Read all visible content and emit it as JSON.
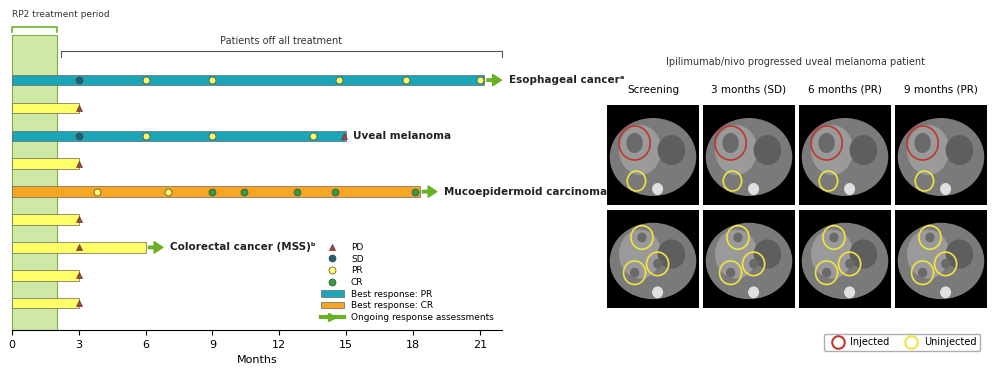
{
  "chart_data": {
    "type": "swimmer",
    "xlabel": "Months",
    "xlim": [
      0,
      22
    ],
    "xticks": [
      0,
      3,
      6,
      9,
      12,
      15,
      18,
      21
    ],
    "tick_labels": "x",
    "legend": "lower right",
    "treatment_period": {
      "label": "RP2 treatment period",
      "start": 0,
      "end": 2,
      "color": "#cfe8a6"
    },
    "off_treatment": {
      "label": "Patients off all treatment"
    },
    "response_types": [
      {
        "name": "PD",
        "color": "#c0392b",
        "marker": "triangle"
      },
      {
        "name": "SD",
        "color": "#1f5f7a",
        "marker": "circle"
      },
      {
        "name": "PR",
        "color": "#ffff66",
        "marker": "circle"
      },
      {
        "name": "CR",
        "color": "#2e9e3e",
        "marker": "circle"
      }
    ],
    "bar_types": [
      {
        "name": "Best response: PR",
        "color": "#1aa6b7"
      },
      {
        "name": "Best response: CR",
        "color": "#f5a623"
      }
    ],
    "ongoing": {
      "label": "Ongoing response assessments",
      "color": "#6ab023"
    },
    "patients": [
      {
        "label": "Esophageal cancerᵃ",
        "end": 21.2,
        "color": "#1aa6b7",
        "ongoing": true,
        "assessments": [
          {
            "month": 3,
            "response": "SD"
          },
          {
            "month": 6,
            "response": "PR"
          },
          {
            "month": 9,
            "response": "PR"
          },
          {
            "month": 14.7,
            "response": "PR"
          },
          {
            "month": 17.7,
            "response": "PR"
          },
          {
            "month": 21,
            "response": "PR"
          }
        ]
      },
      {
        "label": null,
        "end": 3,
        "color": "#ffff66",
        "ongoing": false,
        "assessments": [
          {
            "month": 3,
            "response": "PD"
          }
        ]
      },
      {
        "label": "Uveal melanoma",
        "end": 15,
        "color": "#1aa6b7",
        "ongoing": false,
        "assessments": [
          {
            "month": 3,
            "response": "SD"
          },
          {
            "month": 6,
            "response": "PR"
          },
          {
            "month": 9,
            "response": "PR"
          },
          {
            "month": 13.5,
            "response": "PR"
          },
          {
            "month": 14.9,
            "response": "PD"
          }
        ]
      },
      {
        "label": null,
        "end": 3,
        "color": "#ffff66",
        "ongoing": false,
        "assessments": [
          {
            "month": 3,
            "response": "PD"
          }
        ]
      },
      {
        "label": "Mucoepidermoid carcinoma",
        "end": 18.3,
        "color": "#f5a623",
        "ongoing": true,
        "assessments": [
          {
            "month": 3.8,
            "response": "PR"
          },
          {
            "month": 7,
            "response": "PR"
          },
          {
            "month": 9,
            "response": "CR"
          },
          {
            "month": 10.4,
            "response": "CR"
          },
          {
            "month": 12.8,
            "response": "CR"
          },
          {
            "month": 14.5,
            "response": "CR"
          },
          {
            "month": 18.1,
            "response": "CR"
          }
        ]
      },
      {
        "label": null,
        "end": 3,
        "color": "#ffff66",
        "ongoing": false,
        "assessments": [
          {
            "month": 3,
            "response": "PD"
          }
        ]
      },
      {
        "label": "Colorectal cancer (MSS)ᵇ",
        "end": 6,
        "color": "#ffff66",
        "ongoing": true,
        "assessments": [
          {
            "month": 3,
            "response": "PD"
          }
        ]
      },
      {
        "label": null,
        "end": 3,
        "color": "#ffff66",
        "ongoing": false,
        "assessments": [
          {
            "month": 3,
            "response": "PD"
          }
        ]
      },
      {
        "label": null,
        "end": 3,
        "color": "#ffff66",
        "ongoing": false,
        "assessments": [
          {
            "month": 3,
            "response": "PD"
          }
        ]
      }
    ]
  },
  "scan_panel": {
    "title": "Ipilimumab/nivo progressed uveal melanoma patient",
    "timepoints": [
      "Screening",
      "3 months (SD)",
      "6 months (PR)",
      "9 months (PR)"
    ],
    "markers": [
      {
        "name": "Injected",
        "color": "#c0392b"
      },
      {
        "name": "Uninjected",
        "color": "#f0e442"
      }
    ]
  }
}
